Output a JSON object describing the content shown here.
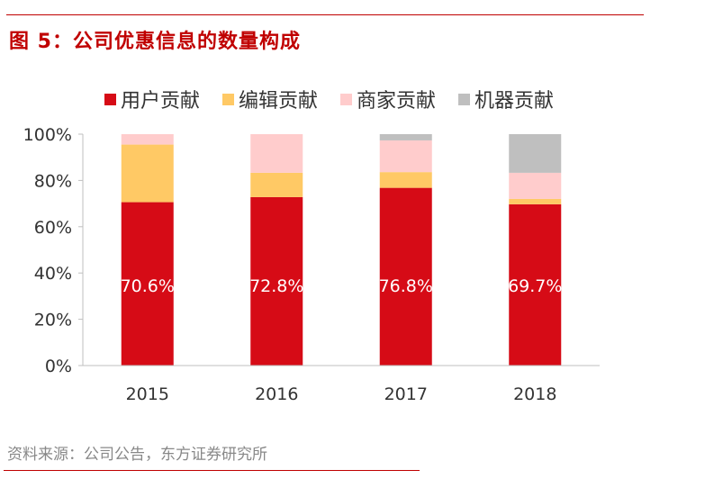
{
  "header": {
    "title": "图 5：公司优惠信息的数量构成"
  },
  "footer": {
    "source": "资料来源：公司公告，东方证券研究所"
  },
  "chart_data": {
    "type": "bar",
    "stacked": true,
    "title": "图 5：公司优惠信息的数量构成",
    "xlabel": "",
    "ylabel": "",
    "categories": [
      "2015",
      "2016",
      "2017",
      "2018"
    ],
    "ylim": [
      0,
      100
    ],
    "yticks": [
      "0%",
      "20%",
      "40%",
      "60%",
      "80%",
      "100%"
    ],
    "legend_position": "top",
    "series": [
      {
        "name": "用户贡献",
        "color": "#d60b16",
        "values": [
          70.6,
          72.8,
          76.8,
          69.7
        ]
      },
      {
        "name": "编辑贡献",
        "color": "#ffc965",
        "values": [
          24.9,
          10.5,
          6.8,
          2.3
        ]
      },
      {
        "name": "商家贡献",
        "color": "#ffcccc",
        "values": [
          4.5,
          16.7,
          13.7,
          11.3
        ]
      },
      {
        "name": "机器贡献",
        "color": "#bfbfbf",
        "values": [
          0,
          0,
          2.7,
          16.7
        ]
      }
    ],
    "data_labels": [
      "70.6%",
      "72.8%",
      "76.8%",
      "69.7%"
    ]
  }
}
